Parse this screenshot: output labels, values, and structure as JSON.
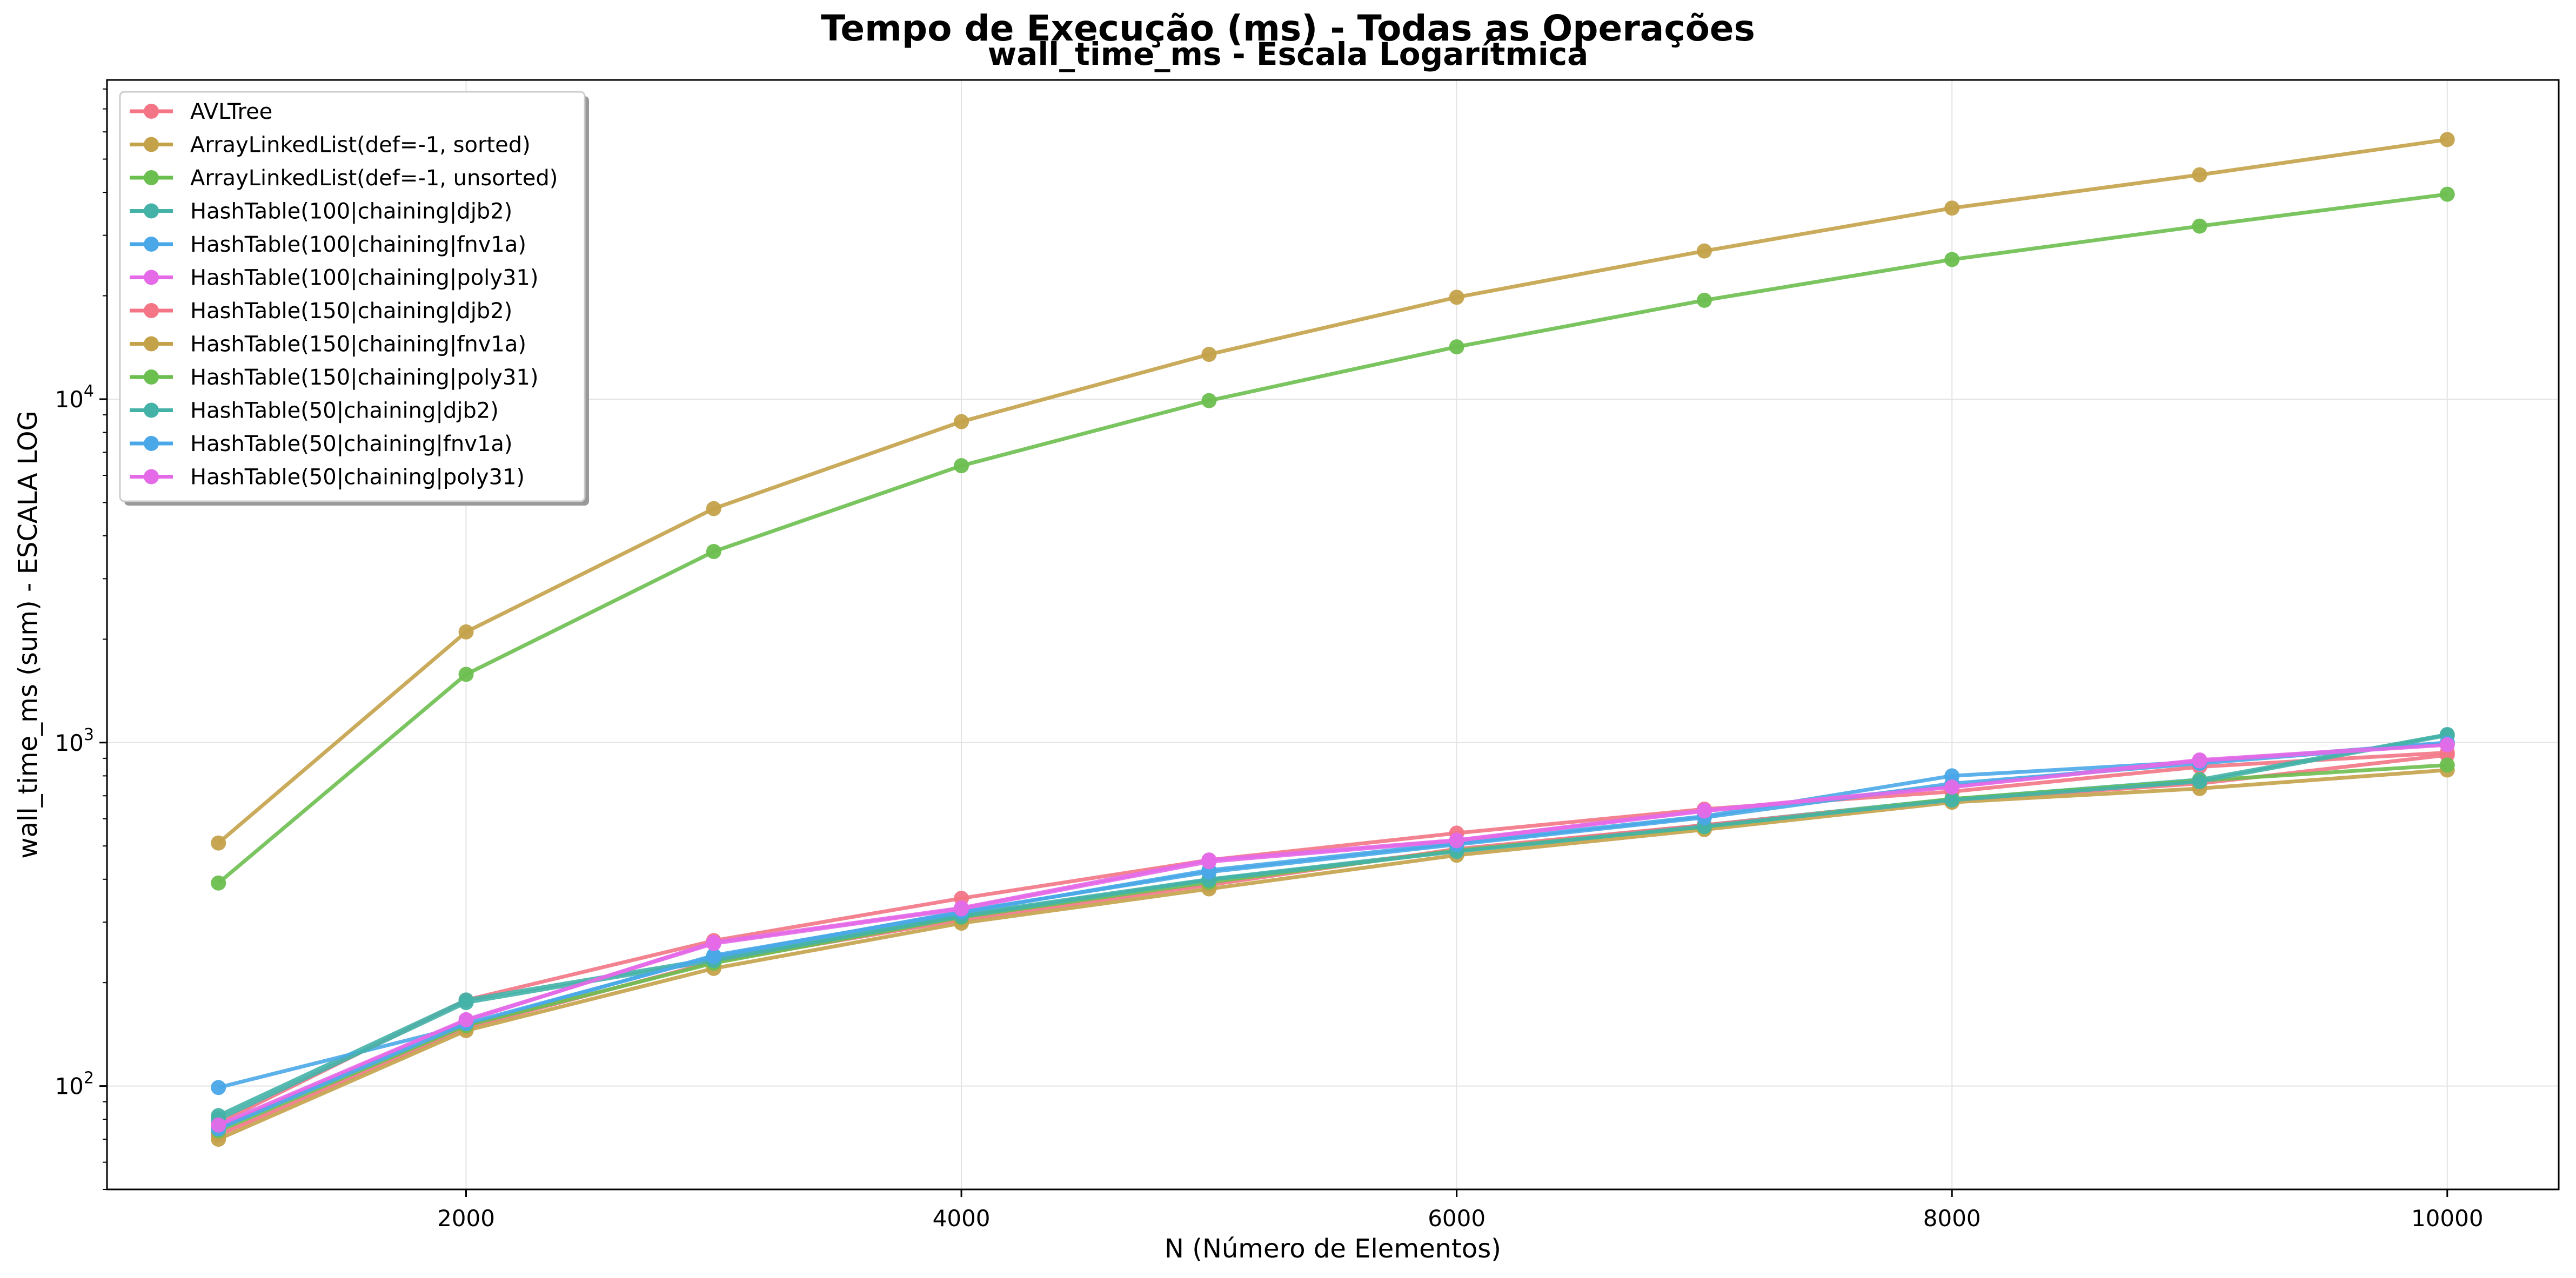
{
  "figure": {
    "suptitle": "Tempo de Execução (ms) - Todas as Operações"
  },
  "chart_data": {
    "type": "line",
    "title": "wall_time_ms - Escala Logarítmica",
    "xlabel": "N (Número de Elementos)",
    "ylabel": "wall_time_ms (sum) - ESCALA LOG",
    "yscale": "log",
    "xlim": [
      550,
      10450
    ],
    "ylim": [
      50,
      85000
    ],
    "xticks": [
      2000,
      4000,
      6000,
      8000,
      10000
    ],
    "yticks": [
      {
        "value": 100,
        "base": "10",
        "exp": "2"
      },
      {
        "value": 1000,
        "base": "10",
        "exp": "3"
      },
      {
        "value": 10000,
        "base": "10",
        "exp": "4"
      }
    ],
    "grid": true,
    "legend_position": "top-left",
    "x": [
      1000,
      2000,
      3000,
      4000,
      5000,
      6000,
      7000,
      8000,
      9000,
      10000
    ],
    "series": [
      {
        "name": "AVLTree",
        "color": "#f37586",
        "values": [
          78,
          178,
          265,
          352,
          455,
          545,
          640,
          720,
          850,
          935
        ]
      },
      {
        "name": "ArrayLinkedList(def=-1, sorted)",
        "color": "#c4a24a",
        "values": [
          510,
          2100,
          4800,
          8600,
          13500,
          19800,
          27000,
          36000,
          45000,
          57000
        ]
      },
      {
        "name": "ArrayLinkedList(def=-1, unsorted)",
        "color": "#6bbf4f",
        "values": [
          390,
          1580,
          3600,
          6400,
          9900,
          14200,
          19400,
          25500,
          31900,
          39500
        ]
      },
      {
        "name": "HashTable(100|chaining|djb2)",
        "color": "#45b2a8",
        "values": [
          82,
          178,
          235,
          315,
          400,
          485,
          575,
          685,
          780,
          1055
        ]
      },
      {
        "name": "HashTable(100|chaining|fnv1a)",
        "color": "#4aa8e8",
        "values": [
          99,
          150,
          240,
          320,
          425,
          510,
          610,
          800,
          880,
          1000
        ]
      },
      {
        "name": "HashTable(100|chaining|poly31)",
        "color": "#e46ae8",
        "values": [
          76,
          155,
          262,
          330,
          455,
          520,
          635,
          745,
          890,
          990
        ]
      },
      {
        "name": "HashTable(150|chaining|djb2)",
        "color": "#f37586",
        "values": [
          72,
          148,
          230,
          305,
          385,
          490,
          575,
          680,
          760,
          920
        ]
      },
      {
        "name": "HashTable(150|chaining|fnv1a)",
        "color": "#c4a24a",
        "values": [
          70,
          145,
          220,
          298,
          375,
          470,
          558,
          670,
          735,
          832
        ]
      },
      {
        "name": "HashTable(150|chaining|poly31)",
        "color": "#6bbf4f",
        "values": [
          74,
          150,
          228,
          310,
          392,
          485,
          568,
          685,
          775,
          860
        ]
      },
      {
        "name": "HashTable(50|chaining|djb2)",
        "color": "#45b2a8",
        "values": [
          80,
          175,
          232,
          312,
          398,
          482,
          570,
          680,
          770,
          1050
        ]
      },
      {
        "name": "HashTable(50|chaining|fnv1a)",
        "color": "#4aa8e8",
        "values": [
          75,
          152,
          238,
          322,
          420,
          505,
          605,
          760,
          870,
          995
        ]
      },
      {
        "name": "HashTable(50|chaining|poly31)",
        "color": "#e46ae8",
        "values": [
          77,
          156,
          260,
          328,
          450,
          518,
          632,
          742,
          885,
          985
        ]
      }
    ]
  }
}
